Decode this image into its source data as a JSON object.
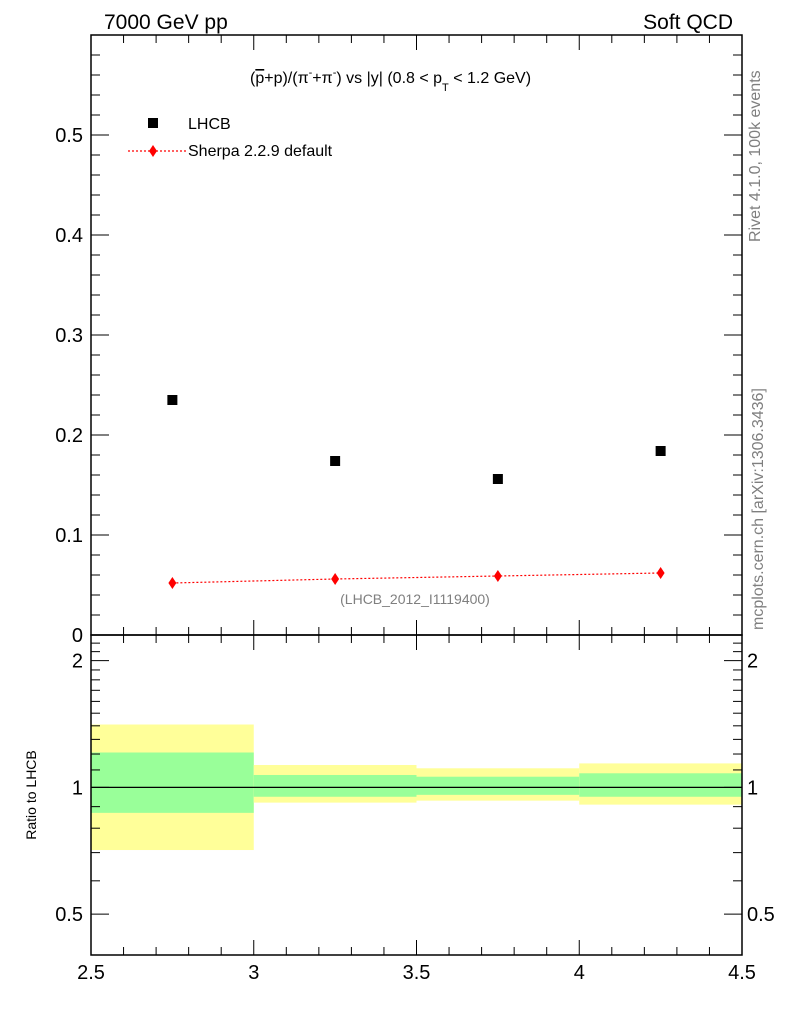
{
  "header": {
    "left_title": "7000 GeV pp",
    "right_title": "Soft QCD"
  },
  "side_labels": {
    "version": "Rivet 4.1.0,  100k events",
    "source": "mcplots.cern.ch [arXiv:1306.3436]"
  },
  "colors": {
    "data": "#000000",
    "mc": "#ff0000",
    "band_inner": "#99ff99",
    "band_outer": "#ffff99"
  },
  "chart_data": [
    {
      "type": "scatter",
      "title": "(p̄+p)/(π⁻+π⁻) vs |y| (0.8 < pT < 1.2 GeV)",
      "title_parts": {
        "prefix": "(",
        "pbar": "p",
        "rest1": "+p)/(π",
        "sup1": "-",
        "rest2": "+π",
        "sup2": "-",
        "rest3": ") vs |y| (0.8 < p",
        "sub": "T",
        "rest4": " < 1.2 GeV)"
      },
      "analysis_label": "(LHCB_2012_I1119400)",
      "xlim": [
        2.5,
        4.5
      ],
      "ylim": [
        0,
        0.6
      ],
      "yticks": [
        0,
        0.1,
        0.2,
        0.3,
        0.4,
        0.5
      ],
      "ytick_labels": [
        "0",
        "0.1",
        "0.2",
        "0.3",
        "0.4",
        "0.5"
      ],
      "series": [
        {
          "name": "LHCB",
          "style": "markers",
          "x": [
            2.75,
            3.25,
            3.75,
            4.25
          ],
          "y": [
            0.235,
            0.174,
            0.156,
            0.184
          ]
        },
        {
          "name": "Sherpa 2.2.9 default",
          "style": "line+markers",
          "x": [
            2.75,
            3.25,
            3.75,
            4.25
          ],
          "y": [
            0.052,
            0.056,
            0.059,
            0.062
          ]
        }
      ]
    },
    {
      "type": "area",
      "ylabel": "Ratio to LHCB",
      "ylim": [
        0.4,
        2.3
      ],
      "yscale": "log",
      "yticks": [
        0.5,
        1,
        2
      ],
      "ytick_labels": [
        "0.5",
        "1",
        "2"
      ],
      "xlim": [
        2.5,
        4.5
      ],
      "xticks": [
        2.5,
        3,
        3.5,
        4,
        4.5
      ],
      "xtick_labels": [
        "2.5",
        "3",
        "3.5",
        "4",
        "4.5"
      ],
      "reference": 1,
      "bins": [
        {
          "xlow": 2.5,
          "xhigh": 3.0,
          "inner": [
            0.87,
            1.21
          ],
          "outer": [
            0.71,
            1.41
          ]
        },
        {
          "xlow": 3.0,
          "xhigh": 3.5,
          "inner": [
            0.95,
            1.07
          ],
          "outer": [
            0.92,
            1.13
          ]
        },
        {
          "xlow": 3.5,
          "xhigh": 4.0,
          "inner": [
            0.96,
            1.06
          ],
          "outer": [
            0.93,
            1.11
          ]
        },
        {
          "xlow": 4.0,
          "xhigh": 4.5,
          "inner": [
            0.95,
            1.08
          ],
          "outer": [
            0.91,
            1.14
          ]
        }
      ]
    }
  ]
}
